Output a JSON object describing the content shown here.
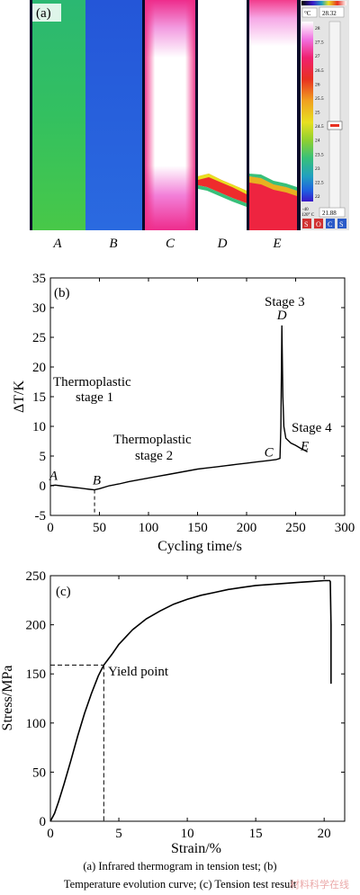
{
  "chart_data": [
    {
      "type": "image",
      "panel": "(a)",
      "specimen_labels": [
        "A",
        "B",
        "C",
        "D",
        "E"
      ],
      "colorbar": {
        "unit": "°C",
        "max_readout": "28.32",
        "min_readout": "21.88",
        "ticks": [
          "28",
          "27.5",
          "27",
          "26.5",
          "26",
          "25.5",
          "25",
          "24.5",
          "24",
          "23.5",
          "23",
          "22.5",
          "22"
        ],
        "small_labels": [
          "-40",
          "120° C"
        ],
        "buttons": [
          "S",
          "O",
          "C",
          "S"
        ],
        "colors": [
          "#000000",
          "#3a17c8",
          "#1f5fe0",
          "#21a0c0",
          "#37c07a",
          "#8fd030",
          "#e8e020",
          "#f0a020",
          "#e83020",
          "#f0207a",
          "#f060d8",
          "#ffffff"
        ]
      }
    },
    {
      "type": "line",
      "panel": "(b)",
      "xlabel": "Cycling time/s",
      "ylabel": "ΔT/K",
      "xlim": [
        0,
        300
      ],
      "ylim": [
        -5,
        35
      ],
      "xticks": [
        "0",
        "50",
        "100",
        "150",
        "200",
        "250",
        "300"
      ],
      "yticks": [
        "-5",
        "0",
        "5",
        "10",
        "15",
        "20",
        "25",
        "30",
        "35"
      ],
      "x": [
        0,
        5,
        10,
        15,
        20,
        25,
        30,
        35,
        40,
        45,
        50,
        60,
        70,
        80,
        90,
        100,
        110,
        120,
        130,
        140,
        150,
        160,
        170,
        180,
        190,
        200,
        210,
        220,
        230,
        234,
        235,
        236,
        237,
        238,
        240,
        245,
        250,
        255,
        260,
        262
      ],
      "y": [
        0,
        0.1,
        0,
        -0.1,
        -0.2,
        -0.3,
        -0.4,
        -0.5,
        -0.6,
        -0.7,
        -0.5,
        0,
        0.3,
        0.7,
        1.0,
        1.3,
        1.6,
        1.9,
        2.2,
        2.5,
        2.8,
        3.0,
        3.2,
        3.4,
        3.6,
        3.8,
        4.0,
        4.2,
        4.4,
        4.6,
        10,
        27,
        15,
        10,
        8,
        7.2,
        6.8,
        6.3,
        5.9,
        5.7
      ],
      "point_labels": [
        {
          "label": "A",
          "x": -1,
          "y": 1
        },
        {
          "label": "B",
          "x": 43,
          "y": 0.2
        },
        {
          "label": "C",
          "x": 218,
          "y": 4.9
        },
        {
          "label": "D",
          "x": 231,
          "y": 28
        },
        {
          "label": "E",
          "x": 255,
          "y": 6
        }
      ],
      "annotations": [
        {
          "lines": [
            "Thermoplastic",
            "stage 1"
          ]
        },
        {
          "lines": [
            "Thermoplastic",
            "stage 2"
          ]
        },
        {
          "lines": [
            "Stage 3"
          ]
        },
        {
          "lines": [
            "Stage 4"
          ]
        }
      ],
      "marker": {
        "x": 45,
        "y": -0.7,
        "style": "dashed"
      }
    },
    {
      "type": "line",
      "panel": "(c)",
      "xlabel": "Strain/%",
      "ylabel": "Stress/MPa",
      "xlim": [
        0,
        21.5
      ],
      "ylim": [
        0,
        250
      ],
      "xticks": [
        "0",
        "5",
        "10",
        "15",
        "20"
      ],
      "yticks": [
        "0",
        "50",
        "100",
        "150",
        "200",
        "250"
      ],
      "x": [
        0,
        0.3,
        0.6,
        1.0,
        1.5,
        2.0,
        2.5,
        3.0,
        3.5,
        3.9,
        4.5,
        5.0,
        6.0,
        7.0,
        8.0,
        9.0,
        10.0,
        11.0,
        12.0,
        13.0,
        14.0,
        15.0,
        16.0,
        17.0,
        18.0,
        19.0,
        20.0,
        20.4,
        20.45,
        20.5,
        20.5
      ],
      "y": [
        0,
        8,
        20,
        38,
        62,
        87,
        110,
        130,
        148,
        159,
        170,
        180,
        195,
        206,
        214,
        221,
        226,
        230,
        233,
        236,
        238,
        240,
        241,
        242,
        243,
        244,
        245,
        245,
        244,
        200,
        140
      ],
      "annotation": "Yield point",
      "yield_point": {
        "x": 3.9,
        "y": 159
      }
    }
  ],
  "caption": {
    "line1": "(a)  Infrared thermogram in tension test;  (b)",
    "line2": "Temperature evolution curve; (c) Tension test result"
  },
  "watermark": "材料科学在线"
}
